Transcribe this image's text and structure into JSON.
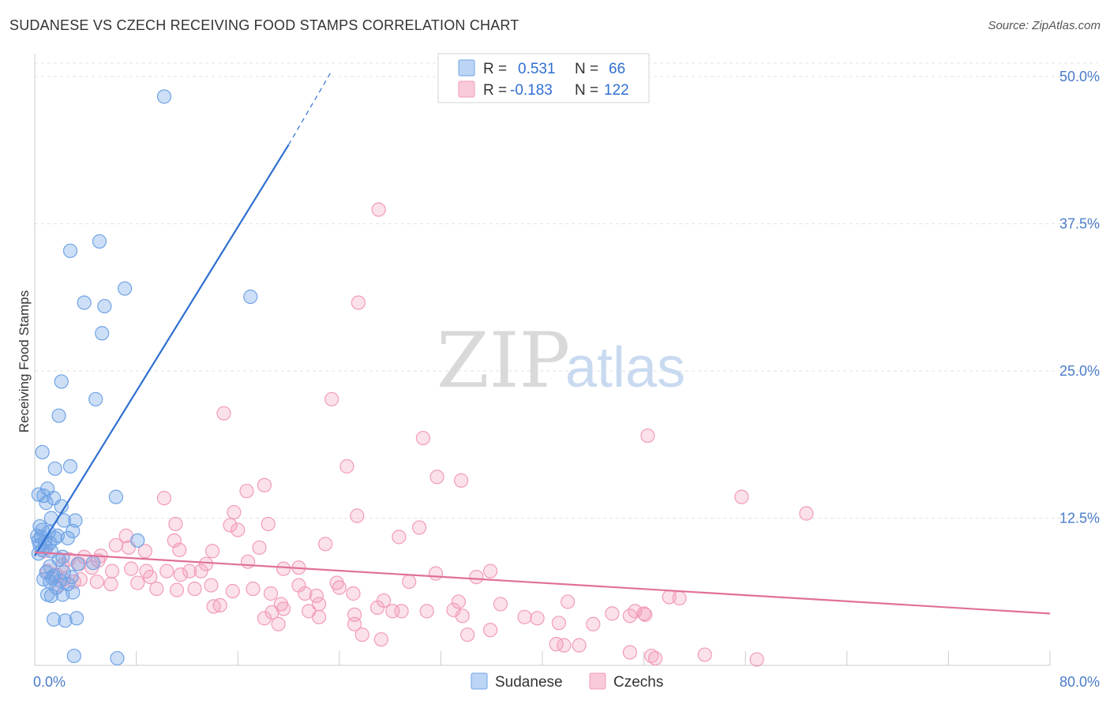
{
  "header": {
    "title": "SUDANESE VS CZECH RECEIVING FOOD STAMPS CORRELATION CHART",
    "source": "Source: ZipAtlas.com"
  },
  "watermark": {
    "zip": "ZIP",
    "atlas": "atlas"
  },
  "colors": {
    "sudanese": "#6fa3e6",
    "sudanese_line": "#2f6fd1",
    "czechs": "#f29bb8",
    "czechs_line": "#e0709a",
    "grid": "#e3e3e3",
    "axis_text": "#4a7cc9"
  },
  "legend": {
    "rows": [
      {
        "r_label": "R =",
        "r_value": "0.531",
        "n_label": "N =",
        "n_value": "66"
      },
      {
        "r_label": "R =",
        "r_value": "-0.183",
        "n_label": "N =",
        "n_value": "122"
      }
    ]
  },
  "chart_data": {
    "type": "scatter",
    "title": "SUDANESE VS CZECH RECEIVING FOOD STAMPS CORRELATION CHART",
    "xlabel": "",
    "ylabel": "Receiving Food Stamps",
    "xlim": [
      0,
      80
    ],
    "ylim": [
      0,
      50
    ],
    "x_tick_labels": [
      "0.0%",
      "80.0%"
    ],
    "y_ticks": [
      12.5,
      25.0,
      37.5,
      50.0
    ],
    "y_tick_labels": [
      "12.5%",
      "25.0%",
      "37.5%",
      "50.0%"
    ],
    "grid": true,
    "legend_position": "top-center",
    "series": [
      {
        "name": "Sudanese",
        "r": 0.531,
        "n": 66,
        "trend": {
          "x": [
            0,
            20
          ],
          "y": [
            9.3,
            44.2
          ],
          "dashed_to": [
            23.3,
            50.3
          ]
        },
        "points": [
          [
            10.2,
            48.3
          ],
          [
            5.1,
            36.0
          ],
          [
            2.8,
            35.2
          ],
          [
            7.1,
            32.0
          ],
          [
            17.0,
            31.3
          ],
          [
            3.9,
            30.8
          ],
          [
            5.5,
            30.5
          ],
          [
            5.3,
            28.2
          ],
          [
            2.1,
            24.1
          ],
          [
            4.8,
            22.6
          ],
          [
            1.9,
            21.2
          ],
          [
            0.6,
            18.1
          ],
          [
            1.6,
            16.7
          ],
          [
            2.8,
            16.9
          ],
          [
            1.0,
            15.0
          ],
          [
            0.3,
            14.5
          ],
          [
            0.7,
            14.4
          ],
          [
            1.5,
            14.2
          ],
          [
            6.4,
            14.3
          ],
          [
            0.9,
            13.8
          ],
          [
            2.1,
            13.5
          ],
          [
            1.3,
            12.5
          ],
          [
            2.3,
            12.3
          ],
          [
            3.2,
            12.3
          ],
          [
            0.4,
            11.8
          ],
          [
            0.6,
            11.5
          ],
          [
            1.1,
            11.3
          ],
          [
            0.2,
            11.0
          ],
          [
            0.5,
            10.9
          ],
          [
            1.6,
            10.8
          ],
          [
            1.8,
            11.0
          ],
          [
            0.3,
            10.6
          ],
          [
            0.8,
            10.5
          ],
          [
            1.2,
            10.4
          ],
          [
            0.4,
            10.2
          ],
          [
            0.9,
            10.0
          ],
          [
            0.6,
            9.8
          ],
          [
            1.3,
            9.7
          ],
          [
            2.6,
            10.8
          ],
          [
            3.0,
            11.4
          ],
          [
            8.1,
            10.6
          ],
          [
            2.2,
            9.2
          ],
          [
            1.9,
            9.0
          ],
          [
            1.2,
            8.4
          ],
          [
            3.4,
            8.6
          ],
          [
            4.6,
            8.7
          ],
          [
            0.9,
            7.9
          ],
          [
            1.5,
            7.6
          ],
          [
            2.3,
            7.9
          ],
          [
            2.9,
            7.5
          ],
          [
            0.7,
            7.3
          ],
          [
            1.2,
            7.1
          ],
          [
            2.0,
            7.2
          ],
          [
            2.6,
            6.9
          ],
          [
            1.7,
            6.6
          ],
          [
            3.0,
            6.2
          ],
          [
            1.3,
            5.9
          ],
          [
            2.2,
            6.0
          ],
          [
            1.5,
            3.9
          ],
          [
            2.4,
            3.8
          ],
          [
            3.3,
            4.0
          ],
          [
            3.1,
            0.8
          ],
          [
            6.5,
            0.6
          ],
          [
            0.3,
            9.5
          ],
          [
            1.4,
            7.4
          ],
          [
            1.0,
            6.0
          ]
        ]
      },
      {
        "name": "Czechs",
        "r": -0.183,
        "n": 122,
        "trend": {
          "x": [
            0,
            80
          ],
          "y": [
            9.6,
            4.4
          ]
        },
        "points": [
          [
            27.1,
            38.7
          ],
          [
            25.5,
            30.8
          ],
          [
            23.4,
            22.6
          ],
          [
            14.9,
            21.4
          ],
          [
            30.6,
            19.3
          ],
          [
            48.3,
            19.5
          ],
          [
            24.6,
            16.9
          ],
          [
            31.7,
            16.0
          ],
          [
            33.6,
            15.7
          ],
          [
            18.1,
            15.3
          ],
          [
            16.7,
            14.8
          ],
          [
            10.2,
            14.2
          ],
          [
            55.7,
            14.3
          ],
          [
            60.8,
            12.9
          ],
          [
            15.7,
            13.0
          ],
          [
            25.4,
            12.7
          ],
          [
            11.1,
            12.0
          ],
          [
            15.4,
            11.9
          ],
          [
            18.4,
            12.0
          ],
          [
            30.3,
            11.7
          ],
          [
            16.0,
            11.5
          ],
          [
            7.2,
            11.0
          ],
          [
            11.0,
            10.6
          ],
          [
            22.9,
            10.3
          ],
          [
            28.7,
            10.9
          ],
          [
            6.4,
            10.2
          ],
          [
            7.4,
            10.0
          ],
          [
            8.7,
            9.7
          ],
          [
            11.4,
            9.8
          ],
          [
            17.7,
            10.0
          ],
          [
            14.0,
            9.7
          ],
          [
            3.9,
            9.2
          ],
          [
            5.2,
            9.3
          ],
          [
            3.5,
            8.6
          ],
          [
            2.2,
            8.5
          ],
          [
            4.5,
            8.3
          ],
          [
            6.1,
            8.0
          ],
          [
            7.6,
            8.2
          ],
          [
            8.8,
            8.0
          ],
          [
            10.4,
            8.0
          ],
          [
            11.5,
            7.7
          ],
          [
            12.2,
            8.0
          ],
          [
            13.1,
            8.0
          ],
          [
            13.5,
            8.6
          ],
          [
            16.8,
            8.8
          ],
          [
            19.6,
            8.2
          ],
          [
            20.8,
            8.3
          ],
          [
            31.6,
            7.8
          ],
          [
            34.8,
            7.5
          ],
          [
            35.9,
            8.0
          ],
          [
            1.0,
            8.0
          ],
          [
            1.7,
            7.7
          ],
          [
            2.3,
            7.3
          ],
          [
            3.1,
            7.1
          ],
          [
            3.6,
            7.3
          ],
          [
            4.9,
            7.1
          ],
          [
            6.0,
            6.9
          ],
          [
            8.1,
            7.0
          ],
          [
            9.6,
            6.5
          ],
          [
            11.2,
            6.4
          ],
          [
            12.6,
            6.5
          ],
          [
            13.9,
            6.8
          ],
          [
            15.6,
            6.3
          ],
          [
            17.2,
            6.5
          ],
          [
            18.6,
            6.1
          ],
          [
            20.8,
            6.8
          ],
          [
            21.3,
            6.1
          ],
          [
            22.2,
            5.9
          ],
          [
            23.8,
            7.0
          ],
          [
            24.0,
            6.6
          ],
          [
            25.1,
            6.1
          ],
          [
            29.5,
            7.1
          ],
          [
            27.5,
            5.5
          ],
          [
            33.4,
            5.4
          ],
          [
            36.7,
            5.2
          ],
          [
            42.0,
            5.4
          ],
          [
            45.5,
            4.4
          ],
          [
            48.0,
            4.4
          ],
          [
            50.0,
            5.8
          ],
          [
            19.4,
            5.2
          ],
          [
            22.4,
            5.2
          ],
          [
            14.1,
            5.0
          ],
          [
            14.6,
            5.1
          ],
          [
            19.6,
            4.8
          ],
          [
            18.7,
            4.5
          ],
          [
            21.6,
            4.6
          ],
          [
            22.4,
            4.1
          ],
          [
            25.2,
            4.3
          ],
          [
            27.0,
            4.9
          ],
          [
            28.2,
            4.6
          ],
          [
            28.9,
            4.6
          ],
          [
            30.9,
            4.6
          ],
          [
            33.0,
            4.7
          ],
          [
            33.7,
            4.2
          ],
          [
            38.6,
            4.1
          ],
          [
            39.6,
            4.0
          ],
          [
            41.3,
            3.6
          ],
          [
            46.9,
            4.2
          ],
          [
            47.3,
            4.6
          ],
          [
            48.1,
            4.3
          ],
          [
            50.8,
            5.7
          ],
          [
            18.1,
            4.0
          ],
          [
            19.2,
            3.5
          ],
          [
            25.2,
            3.5
          ],
          [
            25.8,
            2.6
          ],
          [
            27.3,
            2.2
          ],
          [
            34.1,
            2.6
          ],
          [
            35.9,
            3.0
          ],
          [
            41.1,
            1.8
          ],
          [
            41.7,
            1.7
          ],
          [
            42.9,
            1.7
          ],
          [
            44.0,
            3.5
          ],
          [
            46.9,
            1.1
          ],
          [
            48.6,
            0.8
          ],
          [
            48.9,
            0.6
          ],
          [
            52.8,
            0.9
          ],
          [
            56.9,
            0.5
          ],
          [
            0.8,
            9.7
          ],
          [
            2.7,
            9.0
          ],
          [
            1.9,
            6.8
          ],
          [
            9.1,
            7.5
          ],
          [
            5.0,
            8.9
          ]
        ]
      }
    ]
  },
  "bottom_legend": {
    "items": [
      "Sudanese",
      "Czechs"
    ]
  }
}
